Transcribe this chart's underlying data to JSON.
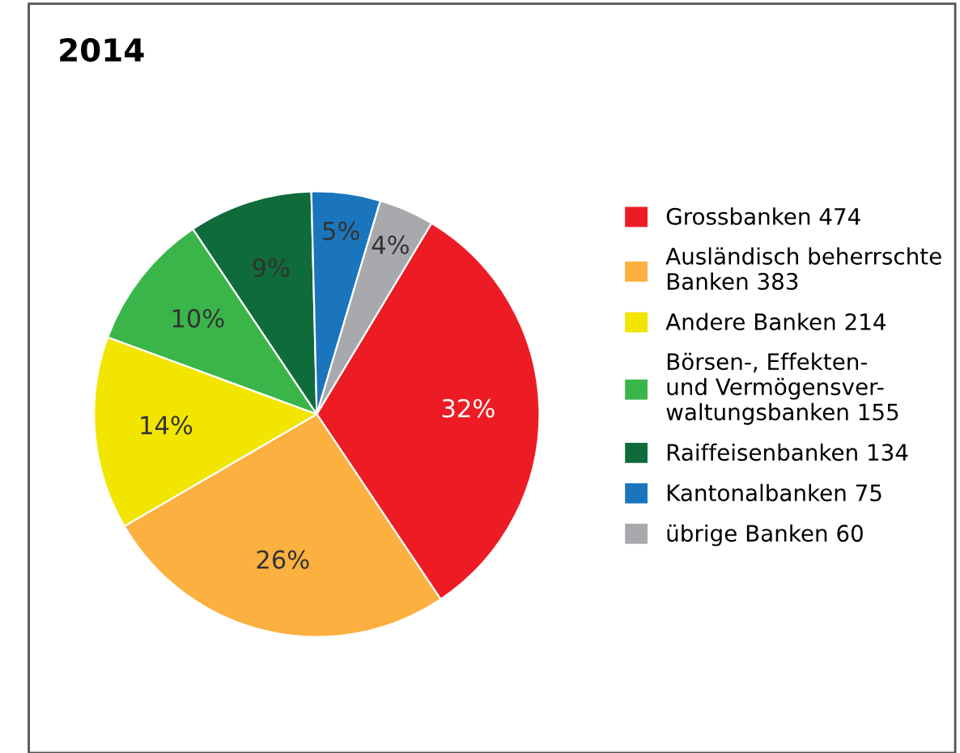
{
  "chart_data": {
    "type": "pie",
    "title": "2014",
    "categories": [
      "Grossbanken 474",
      "Ausländisch beherrschte\nBanken 383",
      "Andere Banken 214",
      "Börsen-, Effekten-\nund Vermögensver-\nwaltungsbanken 155",
      "Raiffeisenbanken 134",
      "Kantonalbanken 75",
      "übrige Banken 60"
    ],
    "values": [
      32,
      26,
      14,
      10,
      9,
      5,
      4
    ],
    "value_labels": [
      "32%",
      "26%",
      "14%",
      "10%",
      "9%",
      "5%",
      "4%"
    ],
    "colors": [
      "#ed1c24",
      "#fbb040",
      "#f2e500",
      "#3ab54a",
      "#0f6b3a",
      "#1a75bc",
      "#a7a9ac"
    ],
    "legend": "right"
  }
}
